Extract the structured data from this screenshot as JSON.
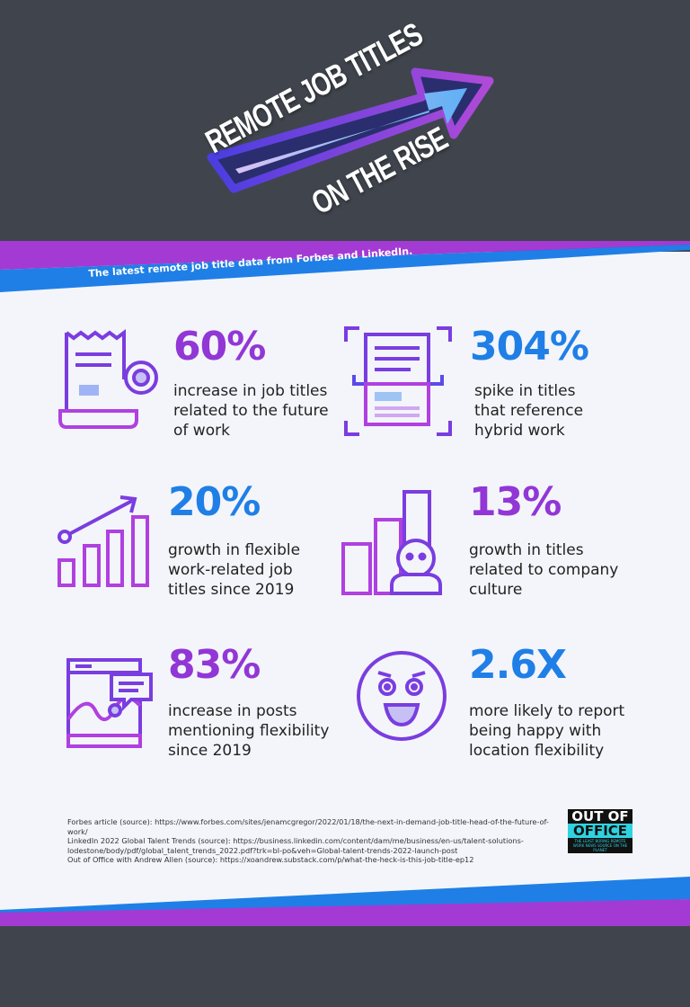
{
  "title": {
    "line1": "REMOTE JOB TITLES",
    "line2": "ON THE RISE"
  },
  "subtitle": "The latest remote job title data from Forbes and LinkedIn.",
  "colors": {
    "purple": "#9236d6",
    "blue": "#1f7fe6",
    "dark": "#40454d",
    "background": "#f3f5fa"
  },
  "stats": [
    {
      "value": "60%",
      "text": "increase in job titles related to the future of work",
      "icon": "receipt-coin-icon"
    },
    {
      "value": "304%",
      "text": "spike in titles that reference hybrid work",
      "icon": "document-scan-icon"
    },
    {
      "value": "20%",
      "text": "growth in flexible work-related job titles since 2019",
      "icon": "growth-chart-icon"
    },
    {
      "value": "13%",
      "text": "growth in titles related to company culture",
      "icon": "person-bar-chart-icon"
    },
    {
      "value": "83%",
      "text": "increase in posts mentioning flexibility since 2019",
      "icon": "browser-chat-chart-icon"
    },
    {
      "value": "2.6X",
      "text": "more likely to report being happy with location flexibility",
      "icon": "happy-face-icon"
    }
  ],
  "sources": [
    "Forbes article (source): https://www.forbes.com/sites/jenamcgregor/2022/01/18/the-next-in-demand-job-title-head-of-the-future-of-work/",
    "LinkedIn 2022 Global Talent Trends (source): https://business.linkedin.com/content/dam/me/business/en-us/talent-solutions-lodestone/body/pdf/global_talent_trends_2022.pdf?trk=bl-po&veh=Global-talent-trends-2022-launch-post",
    "Out of Office with Andrew Allen (source): https://xoandrew.substack.com/p/what-the-heck-is-this-job-title-ep12"
  ],
  "logo": {
    "line1": "OUT OF",
    "line2": "OFFICE",
    "tagline": "THE LEAST BORING REMOTE WORK NEWS SOURCE ON THE PLANET"
  }
}
